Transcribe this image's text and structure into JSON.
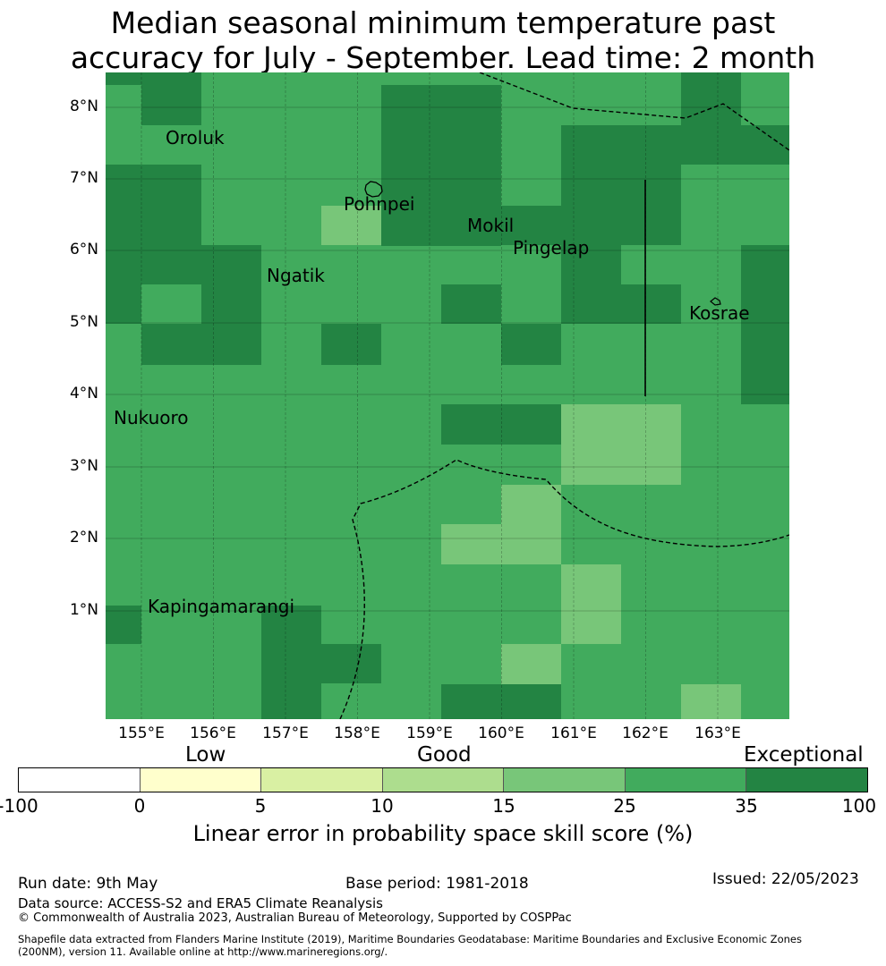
{
  "title": {
    "line1": "Median seasonal minimum temperature past",
    "line2": "accuracy for July - September. Lead time: 2 month"
  },
  "map": {
    "lat_labels": [
      "8°N",
      "7°N",
      "6°N",
      "5°N",
      "4°N",
      "3°N",
      "2°N",
      "1°N"
    ],
    "lon_labels": [
      "155°E",
      "156°E",
      "157°E",
      "158°E",
      "159°E",
      "160°E",
      "161°E",
      "162°E",
      "163°E"
    ],
    "places": [
      {
        "id": "oroluk",
        "name": "Oroluk"
      },
      {
        "id": "pohnpei",
        "name": "Pohnpei"
      },
      {
        "id": "mokil",
        "name": "Mokil"
      },
      {
        "id": "pingelap",
        "name": "Pingelap"
      },
      {
        "id": "ngatik",
        "name": "Ngatik"
      },
      {
        "id": "kosrae",
        "name": "Kosrae"
      },
      {
        "id": "nukuoro",
        "name": "Nukuoro"
      },
      {
        "id": "kapingamarangi",
        "name": "Kapingamarangi"
      }
    ],
    "skill_colors": {
      "c15": "#78c679",
      "c25": "#41ab5d",
      "c35": "#238443"
    }
  },
  "colorbar": {
    "categories": [
      "Low",
      "Good",
      "Exceptional"
    ],
    "ticks": [
      "-100",
      "0",
      "5",
      "10",
      "15",
      "25",
      "35",
      "100"
    ],
    "colors": [
      "#ffffff",
      "#ffffcc",
      "#d9f0a3",
      "#addd8e",
      "#78c679",
      "#41ab5d",
      "#238443"
    ],
    "label": "Linear error in probability space skill score (%)"
  },
  "footer": {
    "run_date": "Run date: 9th May",
    "base_period": "Base period: 1981-2018",
    "issued": "Issued: 22/05/2023",
    "data_source": "Data source: ACCESS-S2 and ERA5 Climate Reanalysis",
    "copyright": "© Commonwealth of Australia 2023, Australian Bureau of Meteorology, Supported by COSPPac",
    "shapefile_line1": "Shapefile data extracted from Flanders Marine Institute (2019), Maritime Boundaries Geodatabase: Maritime Boundaries and Exclusive Economic Zones",
    "shapefile_line2": "(200NM), version 11. Available online at http://www.marineregions.org/."
  }
}
